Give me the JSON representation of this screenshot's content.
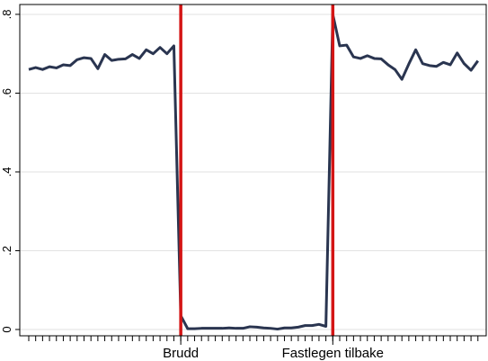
{
  "chart_data": {
    "type": "line",
    "x": [
      0,
      1,
      2,
      3,
      4,
      5,
      6,
      7,
      8,
      9,
      10,
      11,
      12,
      13,
      14,
      15,
      16,
      17,
      18,
      19,
      20,
      21,
      22,
      23,
      24,
      25,
      26,
      27,
      28,
      29,
      30,
      31,
      32,
      33,
      34,
      35,
      36,
      37,
      38,
      39,
      40,
      41,
      42,
      43,
      44,
      45,
      46,
      47,
      48,
      49,
      50,
      51,
      52,
      53,
      54,
      55,
      56,
      57,
      58,
      59,
      60,
      61,
      62,
      63,
      64,
      65
    ],
    "series": [
      {
        "color": "#2a3550",
        "values": [
          0.66,
          0.665,
          0.66,
          0.667,
          0.664,
          0.672,
          0.67,
          0.685,
          0.69,
          0.688,
          0.662,
          0.698,
          0.683,
          0.686,
          0.687,
          0.698,
          0.688,
          0.71,
          0.7,
          0.716,
          0.7,
          0.72,
          0.035,
          0.002,
          0.002,
          0.003,
          0.003,
          0.003,
          0.003,
          0.004,
          0.003,
          0.003,
          0.007,
          0.006,
          0.004,
          0.003,
          0.001,
          0.004,
          0.004,
          0.006,
          0.01,
          0.01,
          0.013,
          0.008,
          0.8,
          0.72,
          0.722,
          0.692,
          0.688,
          0.695,
          0.688,
          0.687,
          0.672,
          0.66,
          0.635,
          0.674,
          0.71,
          0.675,
          0.67,
          0.668,
          0.678,
          0.672,
          0.702,
          0.675,
          0.658,
          0.682
        ]
      }
    ],
    "xlim": [
      -1.3,
      66.2
    ],
    "ylim": [
      -0.016,
      0.825
    ],
    "yticks": [
      0,
      {
        "value": 0.2,
        "label": ".2"
      },
      {
        "value": 0.4,
        "label": ".4"
      },
      {
        "value": 0.6,
        "label": ".6"
      },
      {
        "value": 0.8,
        "label": ".8"
      }
    ],
    "xticks": [
      {
        "value": 22,
        "label": "Brudd"
      },
      {
        "value": 44,
        "label": "Fastlegen tilbake"
      }
    ],
    "xminor_ticks": [
      0,
      1,
      2,
      3,
      4,
      5,
      6,
      7,
      8,
      9,
      10,
      11,
      12,
      13,
      14,
      15,
      16,
      17,
      18,
      19,
      20,
      21,
      22,
      23,
      24,
      25,
      26,
      27,
      28,
      29,
      30,
      31,
      32,
      33,
      34,
      35,
      36,
      37,
      38,
      39,
      40,
      41,
      42,
      43,
      44,
      45,
      46,
      47,
      48,
      49,
      50,
      51,
      52,
      53,
      54,
      55,
      56,
      57,
      58,
      59,
      60,
      61,
      62,
      63,
      64,
      65
    ],
    "reference_lines": [
      22,
      44
    ],
    "reference_color": "#d41515",
    "grid": true
  }
}
